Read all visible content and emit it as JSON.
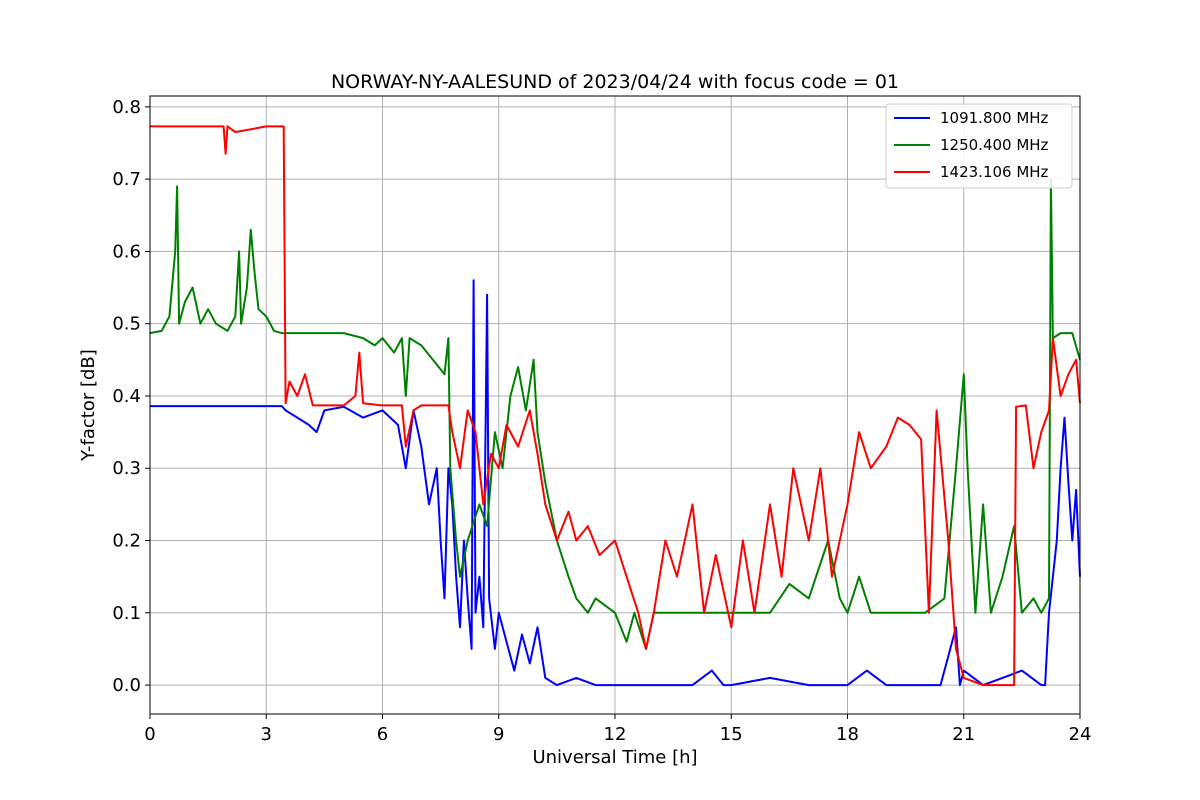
{
  "chart_data": {
    "type": "line",
    "title": "NORWAY-NY-AALESUND of 2023/04/24 with focus code = 01",
    "xlabel": "Universal Time [h]",
    "ylabel": "Y-factor [dB]",
    "xlim": [
      0,
      24
    ],
    "ylim": [
      -0.04,
      0.815
    ],
    "xticks": [
      0,
      3,
      6,
      9,
      12,
      15,
      18,
      21,
      24
    ],
    "yticks": [
      0.0,
      0.1,
      0.2,
      0.3,
      0.4,
      0.5,
      0.6,
      0.7,
      0.8
    ],
    "ytick_labels": [
      "0.0",
      "0.1",
      "0.2",
      "0.3",
      "0.4",
      "0.5",
      "0.6",
      "0.7",
      "0.8"
    ],
    "grid": true,
    "legend_position": "top-right",
    "series": [
      {
        "name": "1091.800 MHz",
        "color": "#0000ff",
        "points": [
          [
            0,
            0.386
          ],
          [
            3.4,
            0.386
          ],
          [
            3.5,
            0.38
          ],
          [
            3.8,
            0.37
          ],
          [
            4.1,
            0.36
          ],
          [
            4.3,
            0.35
          ],
          [
            4.5,
            0.38
          ],
          [
            5.0,
            0.385
          ],
          [
            5.5,
            0.37
          ],
          [
            6.0,
            0.38
          ],
          [
            6.4,
            0.36
          ],
          [
            6.6,
            0.3
          ],
          [
            6.8,
            0.38
          ],
          [
            7.0,
            0.33
          ],
          [
            7.2,
            0.25
          ],
          [
            7.4,
            0.3
          ],
          [
            7.5,
            0.2
          ],
          [
            7.6,
            0.12
          ],
          [
            7.7,
            0.3
          ],
          [
            7.8,
            0.25
          ],
          [
            7.9,
            0.15
          ],
          [
            8.0,
            0.08
          ],
          [
            8.1,
            0.2
          ],
          [
            8.2,
            0.12
          ],
          [
            8.3,
            0.05
          ],
          [
            8.35,
            0.56
          ],
          [
            8.4,
            0.1
          ],
          [
            8.5,
            0.15
          ],
          [
            8.6,
            0.08
          ],
          [
            8.7,
            0.54
          ],
          [
            8.75,
            0.12
          ],
          [
            8.9,
            0.05
          ],
          [
            9.0,
            0.1
          ],
          [
            9.2,
            0.06
          ],
          [
            9.4,
            0.02
          ],
          [
            9.6,
            0.07
          ],
          [
            9.8,
            0.03
          ],
          [
            10.0,
            0.08
          ],
          [
            10.2,
            0.01
          ],
          [
            10.5,
            0.0
          ],
          [
            11.0,
            0.01
          ],
          [
            11.5,
            0.0
          ],
          [
            12.0,
            0.0
          ],
          [
            13.0,
            0.0
          ],
          [
            14.0,
            0.0
          ],
          [
            14.5,
            0.02
          ],
          [
            14.8,
            0.0
          ],
          [
            15.0,
            0.0
          ],
          [
            16.0,
            0.01
          ],
          [
            17.0,
            0.0
          ],
          [
            18.0,
            0.0
          ],
          [
            18.5,
            0.02
          ],
          [
            19.0,
            0.0
          ],
          [
            20.0,
            0.0
          ],
          [
            20.4,
            0.0
          ],
          [
            20.6,
            0.04
          ],
          [
            20.8,
            0.08
          ],
          [
            20.9,
            0.0
          ],
          [
            21.0,
            0.02
          ],
          [
            21.5,
            0.0
          ],
          [
            22.0,
            0.01
          ],
          [
            22.5,
            0.02
          ],
          [
            23.0,
            0.0
          ],
          [
            23.1,
            0.0
          ],
          [
            23.2,
            0.1
          ],
          [
            23.4,
            0.2
          ],
          [
            23.5,
            0.3
          ],
          [
            23.6,
            0.37
          ],
          [
            23.7,
            0.28
          ],
          [
            23.8,
            0.2
          ],
          [
            23.9,
            0.27
          ],
          [
            24.0,
            0.15
          ]
        ]
      },
      {
        "name": "1250.400 MHz",
        "color": "#008000",
        "points": [
          [
            0,
            0.487
          ],
          [
            0.3,
            0.49
          ],
          [
            0.5,
            0.51
          ],
          [
            0.65,
            0.6
          ],
          [
            0.7,
            0.69
          ],
          [
            0.75,
            0.5
          ],
          [
            0.9,
            0.53
          ],
          [
            1.1,
            0.55
          ],
          [
            1.3,
            0.5
          ],
          [
            1.5,
            0.52
          ],
          [
            1.7,
            0.5
          ],
          [
            2.0,
            0.49
          ],
          [
            2.2,
            0.51
          ],
          [
            2.3,
            0.6
          ],
          [
            2.35,
            0.5
          ],
          [
            2.5,
            0.55
          ],
          [
            2.6,
            0.63
          ],
          [
            2.7,
            0.57
          ],
          [
            2.8,
            0.52
          ],
          [
            3.0,
            0.51
          ],
          [
            3.2,
            0.49
          ],
          [
            3.4,
            0.487
          ],
          [
            4.0,
            0.487
          ],
          [
            5.0,
            0.487
          ],
          [
            5.5,
            0.48
          ],
          [
            5.8,
            0.47
          ],
          [
            6.0,
            0.48
          ],
          [
            6.3,
            0.46
          ],
          [
            6.5,
            0.48
          ],
          [
            6.6,
            0.4
          ],
          [
            6.7,
            0.48
          ],
          [
            7.0,
            0.47
          ],
          [
            7.3,
            0.45
          ],
          [
            7.6,
            0.43
          ],
          [
            7.7,
            0.48
          ],
          [
            7.75,
            0.3
          ],
          [
            7.9,
            0.2
          ],
          [
            8.0,
            0.15
          ],
          [
            8.2,
            0.2
          ],
          [
            8.5,
            0.25
          ],
          [
            8.7,
            0.22
          ],
          [
            8.9,
            0.35
          ],
          [
            9.1,
            0.3
          ],
          [
            9.3,
            0.4
          ],
          [
            9.5,
            0.44
          ],
          [
            9.7,
            0.38
          ],
          [
            9.9,
            0.45
          ],
          [
            10.0,
            0.35
          ],
          [
            10.2,
            0.28
          ],
          [
            10.5,
            0.2
          ],
          [
            10.8,
            0.15
          ],
          [
            11.0,
            0.12
          ],
          [
            11.3,
            0.1
          ],
          [
            11.5,
            0.12
          ],
          [
            12.0,
            0.1
          ],
          [
            12.3,
            0.06
          ],
          [
            12.5,
            0.1
          ],
          [
            12.8,
            0.05
          ],
          [
            13.0,
            0.1
          ],
          [
            14.0,
            0.1
          ],
          [
            15.0,
            0.1
          ],
          [
            16.0,
            0.1
          ],
          [
            16.5,
            0.14
          ],
          [
            17.0,
            0.12
          ],
          [
            17.5,
            0.2
          ],
          [
            17.8,
            0.12
          ],
          [
            18.0,
            0.1
          ],
          [
            18.3,
            0.15
          ],
          [
            18.6,
            0.1
          ],
          [
            19.0,
            0.1
          ],
          [
            20.0,
            0.1
          ],
          [
            20.5,
            0.12
          ],
          [
            20.8,
            0.3
          ],
          [
            21.0,
            0.43
          ],
          [
            21.1,
            0.3
          ],
          [
            21.3,
            0.1
          ],
          [
            21.5,
            0.25
          ],
          [
            21.7,
            0.1
          ],
          [
            22.0,
            0.15
          ],
          [
            22.3,
            0.22
          ],
          [
            22.5,
            0.1
          ],
          [
            22.8,
            0.12
          ],
          [
            23.0,
            0.1
          ],
          [
            23.2,
            0.12
          ],
          [
            23.25,
            0.7
          ],
          [
            23.3,
            0.48
          ],
          [
            23.5,
            0.487
          ],
          [
            23.8,
            0.487
          ],
          [
            24.0,
            0.45
          ]
        ]
      },
      {
        "name": "1423.106 MHz",
        "color": "#ff0000",
        "points": [
          [
            0,
            0.773
          ],
          [
            1.9,
            0.773
          ],
          [
            1.95,
            0.735
          ],
          [
            2.0,
            0.773
          ],
          [
            2.2,
            0.765
          ],
          [
            3.0,
            0.773
          ],
          [
            3.45,
            0.773
          ],
          [
            3.5,
            0.39
          ],
          [
            3.6,
            0.42
          ],
          [
            3.8,
            0.4
          ],
          [
            4.0,
            0.43
          ],
          [
            4.2,
            0.387
          ],
          [
            5.0,
            0.387
          ],
          [
            5.3,
            0.4
          ],
          [
            5.4,
            0.46
          ],
          [
            5.5,
            0.39
          ],
          [
            6.0,
            0.387
          ],
          [
            6.5,
            0.387
          ],
          [
            6.6,
            0.33
          ],
          [
            6.8,
            0.38
          ],
          [
            7.0,
            0.387
          ],
          [
            7.7,
            0.387
          ],
          [
            7.8,
            0.35
          ],
          [
            8.0,
            0.3
          ],
          [
            8.2,
            0.38
          ],
          [
            8.4,
            0.35
          ],
          [
            8.6,
            0.25
          ],
          [
            8.8,
            0.32
          ],
          [
            9.0,
            0.3
          ],
          [
            9.2,
            0.36
          ],
          [
            9.5,
            0.33
          ],
          [
            9.8,
            0.38
          ],
          [
            10.0,
            0.32
          ],
          [
            10.2,
            0.25
          ],
          [
            10.5,
            0.2
          ],
          [
            10.8,
            0.24
          ],
          [
            11.0,
            0.2
          ],
          [
            11.3,
            0.22
          ],
          [
            11.6,
            0.18
          ],
          [
            12.0,
            0.2
          ],
          [
            12.3,
            0.15
          ],
          [
            12.6,
            0.1
          ],
          [
            12.8,
            0.05
          ],
          [
            13.0,
            0.1
          ],
          [
            13.3,
            0.2
          ],
          [
            13.6,
            0.15
          ],
          [
            14.0,
            0.25
          ],
          [
            14.3,
            0.1
          ],
          [
            14.6,
            0.18
          ],
          [
            15.0,
            0.08
          ],
          [
            15.3,
            0.2
          ],
          [
            15.6,
            0.1
          ],
          [
            16.0,
            0.25
          ],
          [
            16.3,
            0.15
          ],
          [
            16.6,
            0.3
          ],
          [
            17.0,
            0.2
          ],
          [
            17.3,
            0.3
          ],
          [
            17.6,
            0.15
          ],
          [
            18.0,
            0.25
          ],
          [
            18.3,
            0.35
          ],
          [
            18.6,
            0.3
          ],
          [
            19.0,
            0.33
          ],
          [
            19.3,
            0.37
          ],
          [
            19.6,
            0.36
          ],
          [
            19.9,
            0.34
          ],
          [
            20.1,
            0.1
          ],
          [
            20.3,
            0.38
          ],
          [
            20.6,
            0.2
          ],
          [
            20.8,
            0.05
          ],
          [
            21.0,
            0.01
          ],
          [
            21.5,
            0.0
          ],
          [
            22.0,
            0.0
          ],
          [
            22.3,
            0.0
          ],
          [
            22.35,
            0.385
          ],
          [
            22.6,
            0.387
          ],
          [
            22.8,
            0.3
          ],
          [
            23.0,
            0.35
          ],
          [
            23.2,
            0.38
          ],
          [
            23.3,
            0.48
          ],
          [
            23.5,
            0.4
          ],
          [
            23.7,
            0.43
          ],
          [
            23.9,
            0.45
          ],
          [
            24.0,
            0.39
          ]
        ]
      }
    ]
  }
}
